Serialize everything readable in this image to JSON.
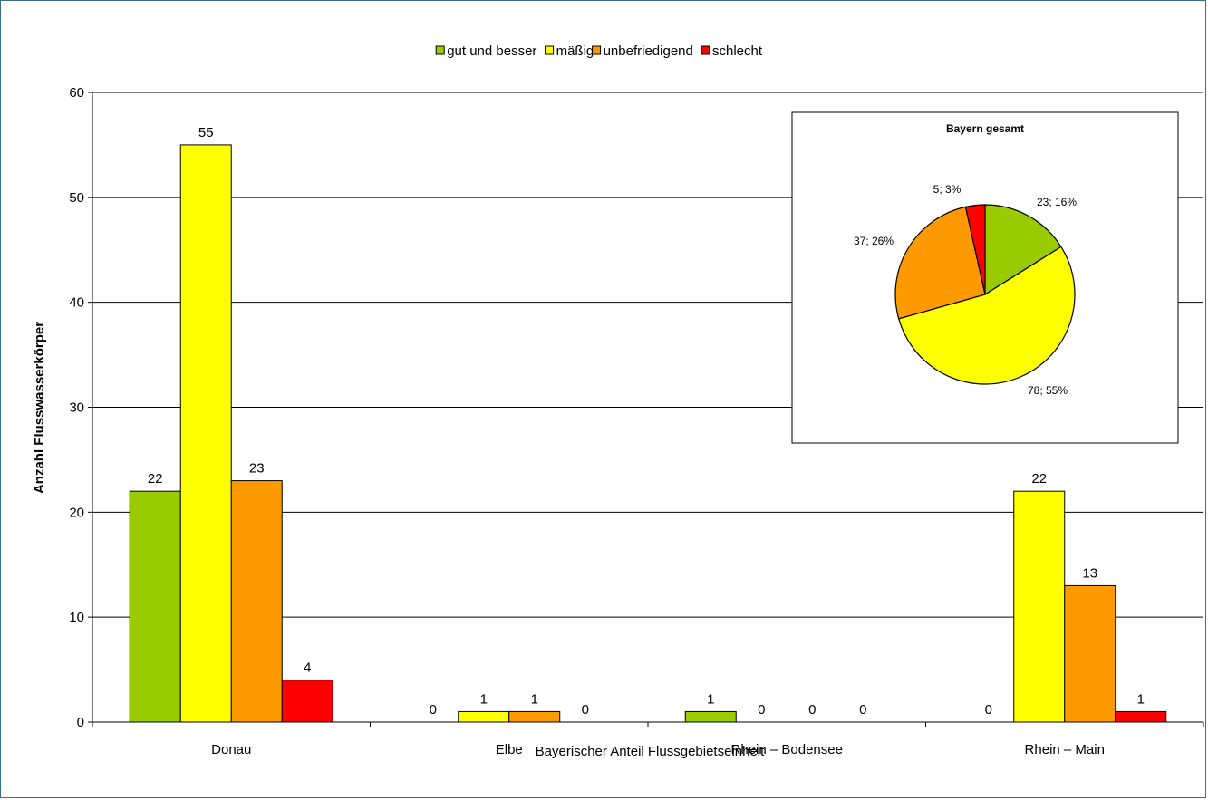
{
  "chart_data": [
    {
      "type": "bar",
      "categories": [
        "Donau",
        "Elbe",
        "Rhein – Bodensee",
        "Rhein – Main"
      ],
      "series": [
        {
          "name": "gut und besser",
          "values": [
            22,
            0,
            1,
            0
          ],
          "color": "#99cc00"
        },
        {
          "name": "mäßig",
          "values": [
            55,
            1,
            0,
            22
          ],
          "color": "#ffff00"
        },
        {
          "name": "unbefriedigend",
          "values": [
            23,
            1,
            0,
            13
          ],
          "color": "#ff9900"
        },
        {
          "name": "schlecht",
          "values": [
            4,
            0,
            0,
            1
          ],
          "color": "#ff0000"
        }
      ],
      "xlabel": "Bayerischer Anteil Flussgebietseinheit",
      "ylabel": "Anzahl Flusswasserkörper",
      "ylim": [
        0,
        60
      ],
      "yticks": [
        0,
        10,
        20,
        30,
        40,
        50,
        60
      ],
      "grid": true,
      "legend": "top-center"
    },
    {
      "type": "pie",
      "title": "Bayern gesamt",
      "slices": [
        {
          "name": "gut und besser",
          "value": 23,
          "percent": 16,
          "label": "23; 16%",
          "color": "#99cc00"
        },
        {
          "name": "mäßig",
          "value": 78,
          "percent": 55,
          "label": "78; 55%",
          "color": "#ffff00"
        },
        {
          "name": "unbefriedigend",
          "value": 37,
          "percent": 26,
          "label": "37; 26%",
          "color": "#ff9900"
        },
        {
          "name": "schlecht",
          "value": 5,
          "percent": 3,
          "label": "5; 3%",
          "color": "#ff0000"
        }
      ]
    }
  ]
}
